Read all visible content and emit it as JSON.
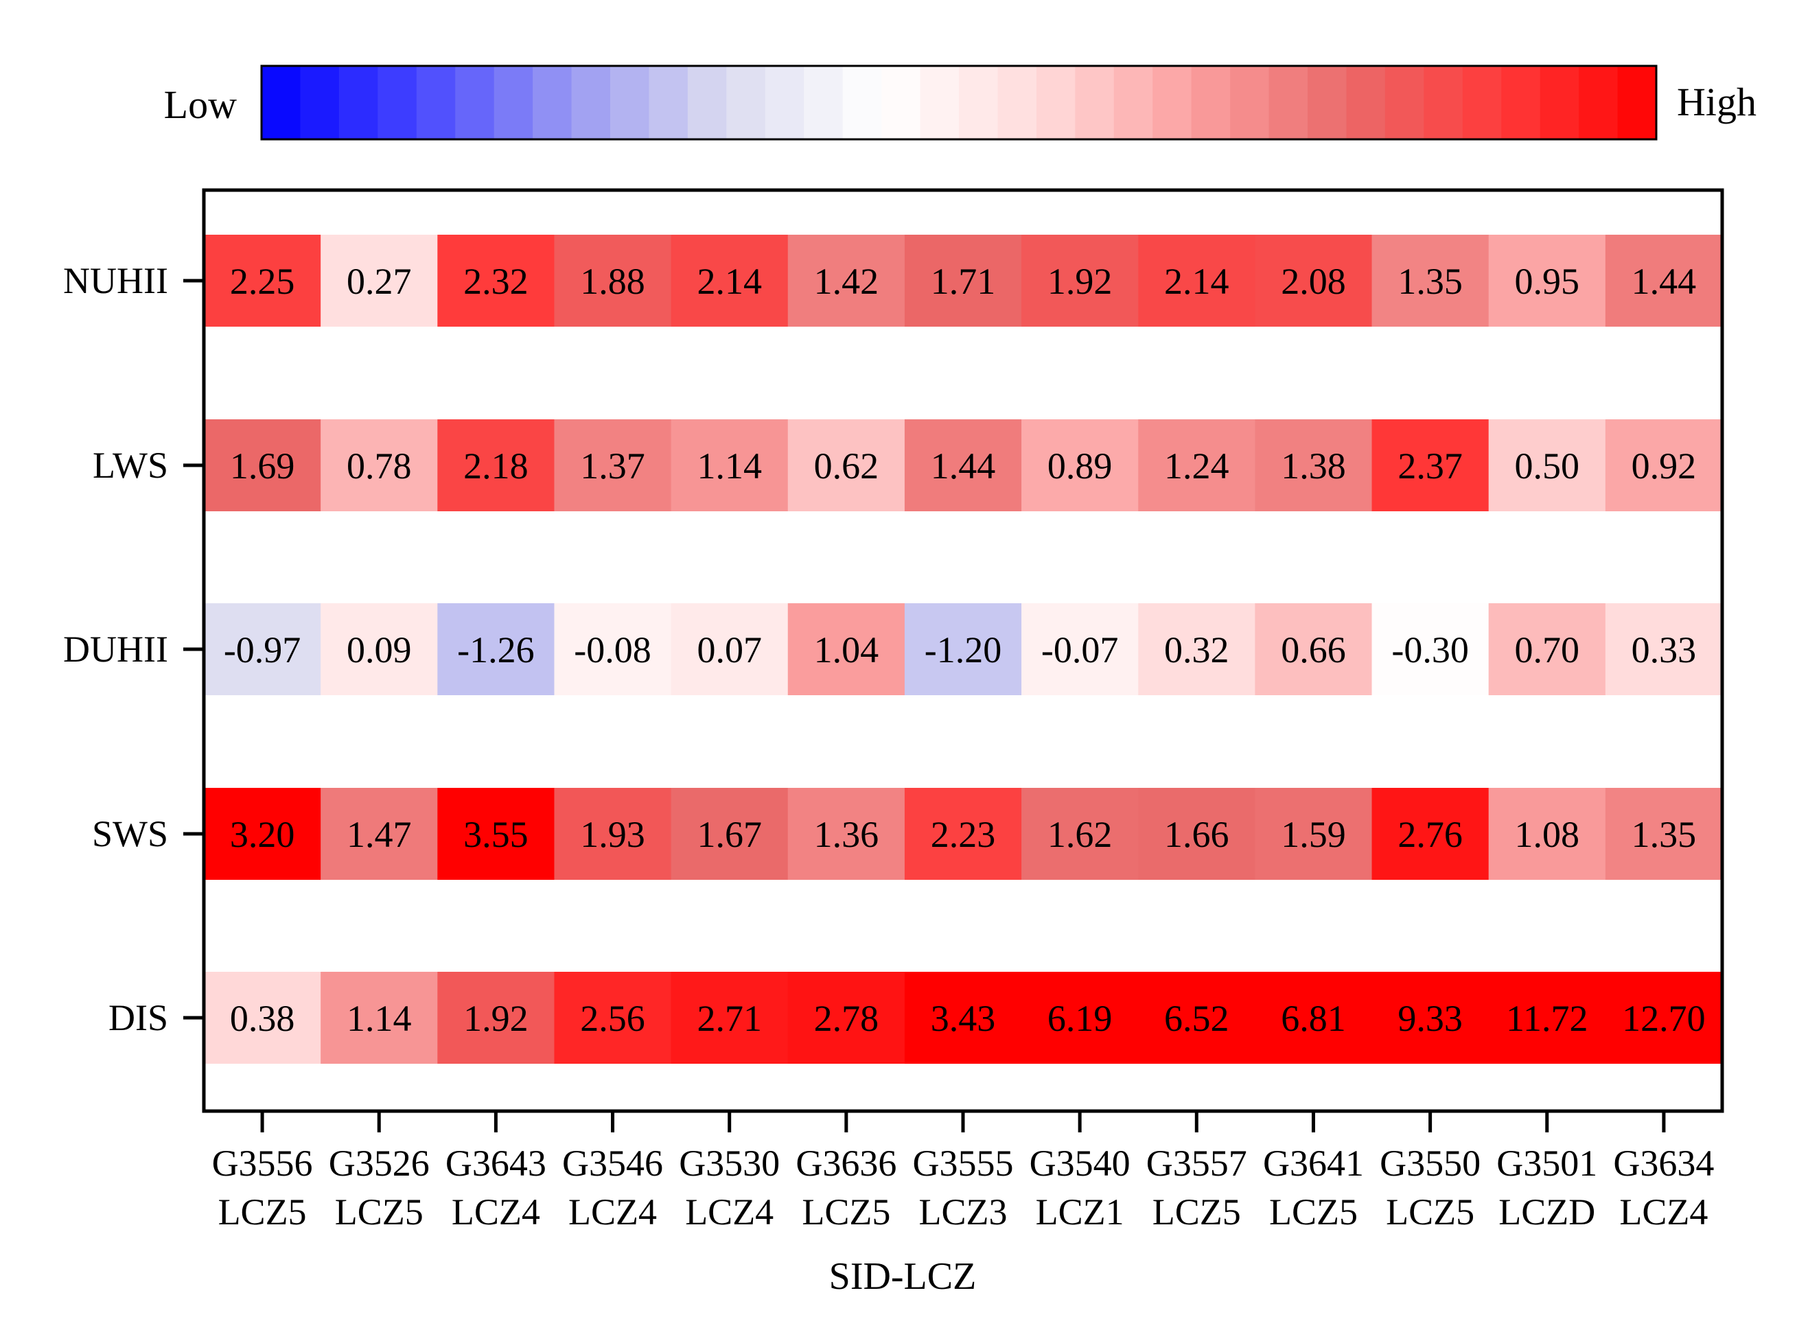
{
  "chart_data": {
    "type": "heatmap",
    "title": "",
    "xlabel": "SID-LCZ",
    "ylabel": "",
    "colorbar": {
      "low_label": "Low",
      "high_label": "High",
      "range": [
        -3,
        3
      ],
      "colormap": [
        "#0000ff",
        "#4646ff",
        "#9a9af2",
        "#dcdcf0",
        "#ffffff",
        "#ffdcdc",
        "#fba0a0",
        "#ea6a6a",
        "#ff3a3a",
        "#ff0000"
      ]
    },
    "rows": [
      "NUHII",
      "LWS",
      "DUHII",
      "SWS",
      "DIS"
    ],
    "columns": [
      {
        "sid": "G3556",
        "lcz": "LCZ5"
      },
      {
        "sid": "G3526",
        "lcz": "LCZ5"
      },
      {
        "sid": "G3643",
        "lcz": "LCZ4"
      },
      {
        "sid": "G3546",
        "lcz": "LCZ4"
      },
      {
        "sid": "G3530",
        "lcz": "LCZ4"
      },
      {
        "sid": "G3636",
        "lcz": "LCZ5"
      },
      {
        "sid": "G3555",
        "lcz": "LCZ3"
      },
      {
        "sid": "G3540",
        "lcz": "LCZ1"
      },
      {
        "sid": "G3557",
        "lcz": "LCZ5"
      },
      {
        "sid": "G3641",
        "lcz": "LCZ5"
      },
      {
        "sid": "G3550",
        "lcz": "LCZ5"
      },
      {
        "sid": "G3501",
        "lcz": "LCZD"
      },
      {
        "sid": "G3634",
        "lcz": "LCZ4"
      }
    ],
    "values": [
      [
        "2.25",
        "0.27",
        "2.32",
        "1.88",
        "2.14",
        "1.42",
        "1.71",
        "1.92",
        "2.14",
        "2.08",
        "1.35",
        "0.95",
        "1.44"
      ],
      [
        "1.69",
        "0.78",
        "2.18",
        "1.37",
        "1.14",
        "0.62",
        "1.44",
        "0.89",
        "1.24",
        "1.38",
        "2.37",
        "0.50",
        "0.92"
      ],
      [
        "-0.97",
        "0.09",
        "-1.26",
        "-0.08",
        "0.07",
        "1.04",
        "-1.20",
        "-0.07",
        "0.32",
        "0.66",
        "-0.30",
        "0.70",
        "0.33"
      ],
      [
        "3.20",
        "1.47",
        "3.55",
        "1.93",
        "1.67",
        "1.36",
        "2.23",
        "1.62",
        "1.66",
        "1.59",
        "2.76",
        "1.08",
        "1.35"
      ],
      [
        "0.38",
        "1.14",
        "1.92",
        "2.56",
        "2.71",
        "2.78",
        "3.43",
        "6.19",
        "6.52",
        "6.81",
        "9.33",
        "11.72",
        "12.70"
      ]
    ]
  }
}
